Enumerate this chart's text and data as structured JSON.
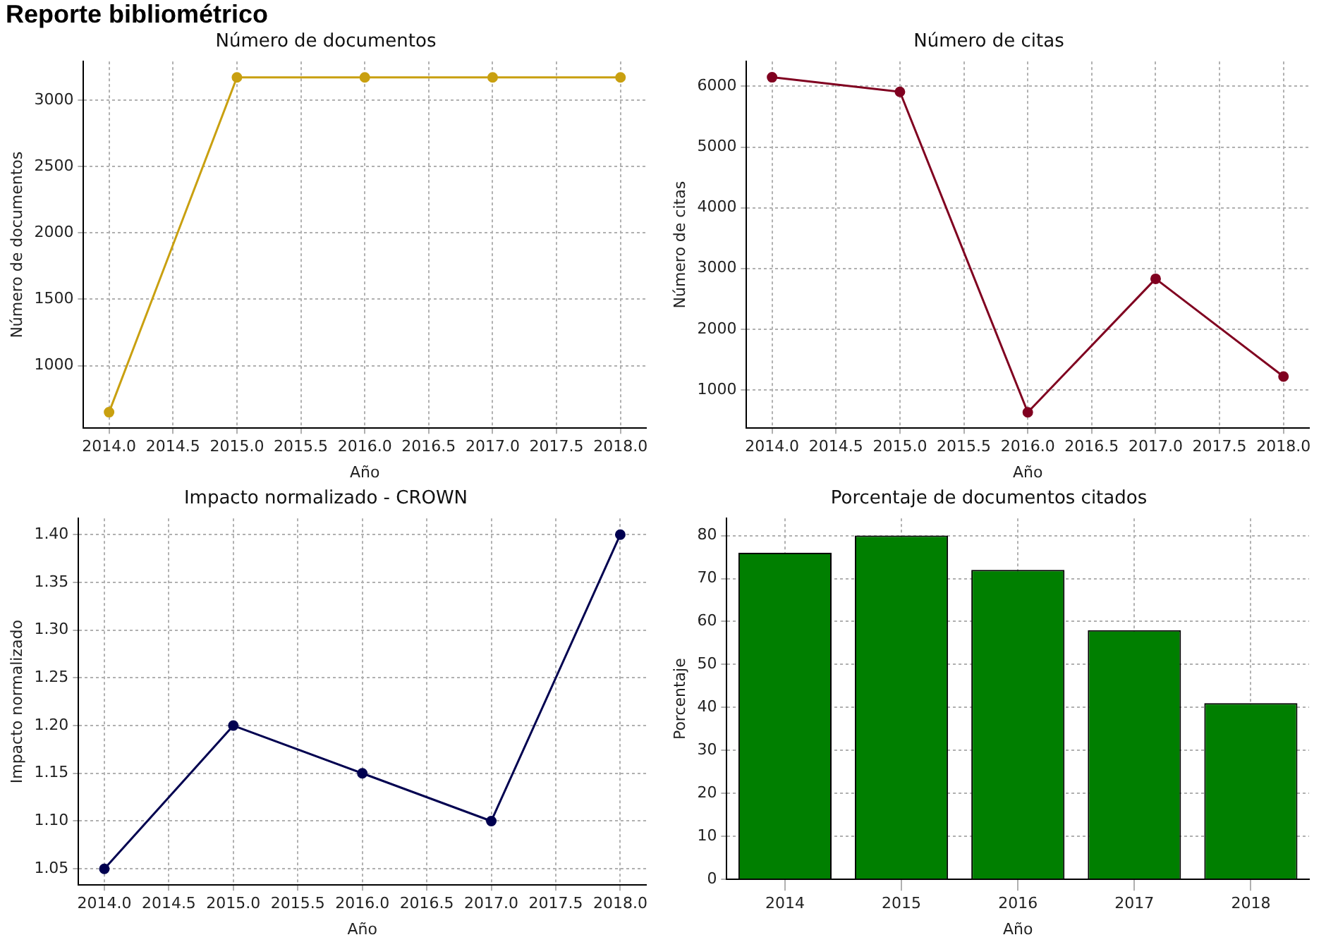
{
  "chart_data": [
    {
      "type": "line",
      "title": "Número de documentos",
      "xlabel": "Año",
      "ylabel": "Número de documentos",
      "annotations": [
        "Reporte bibliométrico"
      ],
      "x": [
        2014,
        2015,
        2016,
        2017,
        2018
      ],
      "series": [
        {
          "color": "#c9a010",
          "values": [
            650,
            3170,
            3170,
            3170,
            3170
          ]
        }
      ],
      "xlim": [
        2013.8,
        2018.2
      ],
      "xticks": [
        {
          "value": 2014,
          "label": "2014.0"
        },
        {
          "value": 2014.5,
          "label": "2014.5"
        },
        {
          "value": 2015,
          "label": "2015.0"
        },
        {
          "value": 2015.5,
          "label": "2015.5"
        },
        {
          "value": 2016,
          "label": "2016.0"
        },
        {
          "value": 2016.5,
          "label": "2016.5"
        },
        {
          "value": 2017,
          "label": "2017.0"
        },
        {
          "value": 2017.5,
          "label": "2017.5"
        },
        {
          "value": 2018,
          "label": "2018.0"
        }
      ],
      "ylim": [
        530,
        3290
      ],
      "yticks": [
        1000,
        1500,
        2000,
        2500,
        3000
      ],
      "grid": true,
      "marker": "circle"
    },
    {
      "type": "line",
      "title": "Número de citas",
      "xlabel": "Año",
      "ylabel": "Número de citas",
      "x": [
        2014,
        2015,
        2016,
        2017,
        2018
      ],
      "series": [
        {
          "color": "#800020",
          "values": [
            6150,
            5910,
            630,
            2830,
            1220
          ]
        }
      ],
      "xlim": [
        2013.8,
        2018.2
      ],
      "xticks": [
        {
          "value": 2014,
          "label": "2014.0"
        },
        {
          "value": 2014.5,
          "label": "2014.5"
        },
        {
          "value": 2015,
          "label": "2015.0"
        },
        {
          "value": 2015.5,
          "label": "2015.5"
        },
        {
          "value": 2016,
          "label": "2016.0"
        },
        {
          "value": 2016.5,
          "label": "2016.5"
        },
        {
          "value": 2017,
          "label": "2017.0"
        },
        {
          "value": 2017.5,
          "label": "2017.5"
        },
        {
          "value": 2018,
          "label": "2018.0"
        }
      ],
      "ylim": [
        370,
        6410
      ],
      "yticks": [
        1000,
        2000,
        3000,
        4000,
        5000,
        6000
      ],
      "grid": true,
      "marker": "circle"
    },
    {
      "type": "line",
      "title": "Impacto normalizado - CROWN",
      "xlabel": "Año",
      "ylabel": "Impacto normalizado",
      "x": [
        2014,
        2015,
        2016,
        2017,
        2018
      ],
      "series": [
        {
          "color": "#000050",
          "values": [
            1.05,
            1.2,
            1.15,
            1.1,
            1.4
          ]
        }
      ],
      "xlim": [
        2013.8,
        2018.2
      ],
      "xticks": [
        {
          "value": 2014,
          "label": "2014.0"
        },
        {
          "value": 2014.5,
          "label": "2014.5"
        },
        {
          "value": 2015,
          "label": "2015.0"
        },
        {
          "value": 2015.5,
          "label": "2015.5"
        },
        {
          "value": 2016,
          "label": "2016.0"
        },
        {
          "value": 2016.5,
          "label": "2016.5"
        },
        {
          "value": 2017,
          "label": "2017.0"
        },
        {
          "value": 2017.5,
          "label": "2017.5"
        },
        {
          "value": 2018,
          "label": "2018.0"
        }
      ],
      "ylim": [
        1.033,
        1.417
      ],
      "yticks": [
        {
          "value": 1.05,
          "label": "1.05"
        },
        {
          "value": 1.1,
          "label": "1.10"
        },
        {
          "value": 1.15,
          "label": "1.15"
        },
        {
          "value": 1.2,
          "label": "1.20"
        },
        {
          "value": 1.25,
          "label": "1.25"
        },
        {
          "value": 1.3,
          "label": "1.30"
        },
        {
          "value": 1.35,
          "label": "1.35"
        },
        {
          "value": 1.4,
          "label": "1.40"
        }
      ],
      "grid": true,
      "marker": "circle"
    },
    {
      "type": "bar",
      "title": "Porcentaje de documentos citados",
      "xlabel": "Año",
      "ylabel": "Porcentaje",
      "categories": [
        "2014",
        "2015",
        "2016",
        "2017",
        "2018"
      ],
      "values": [
        76,
        80,
        72,
        58,
        41
      ],
      "color": "#007f00",
      "ylim": [
        0,
        84
      ],
      "yticks": [
        0,
        10,
        20,
        30,
        40,
        50,
        60,
        70,
        80
      ],
      "grid": true
    }
  ]
}
